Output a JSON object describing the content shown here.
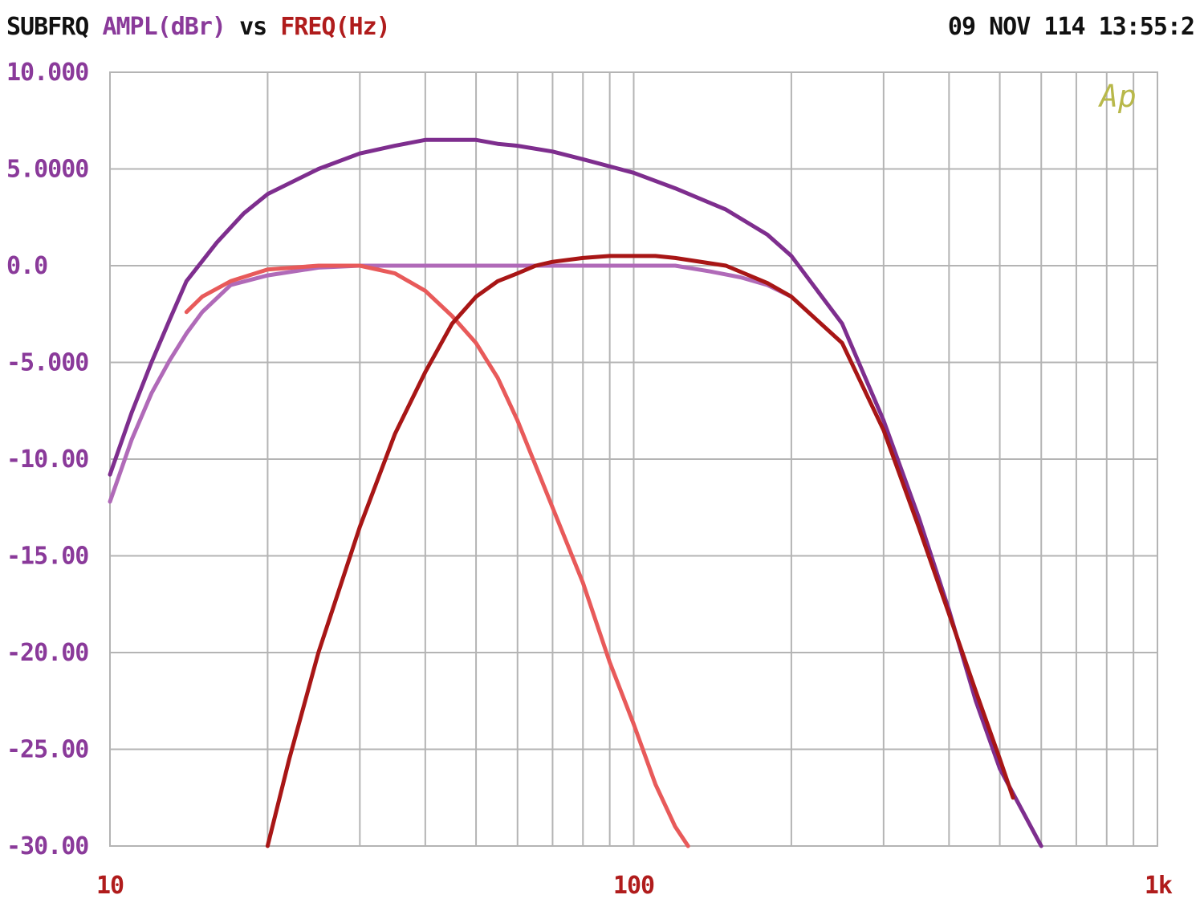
{
  "header": {
    "prefix": "SUBFRQ",
    "y_quantity": "AMPL(dBr)",
    "vs": "vs",
    "x_quantity": "FREQ(Hz)",
    "timestamp": "09 NOV 114 13:55:2"
  },
  "logo_text": "Ap",
  "colors": {
    "background": "#ffffff",
    "grid": "#b4b4b4",
    "y_axis_text": "#8a3a9a",
    "x_axis_text": "#b01c1c",
    "header_black": "#111111",
    "logo": "#b8b84a"
  },
  "chart_data": {
    "type": "line",
    "title": "",
    "xlabel": "FREQ(Hz)",
    "ylabel": "AMPL(dBr)",
    "x_scale": "log",
    "xlim": [
      10,
      1000
    ],
    "ylim": [
      -30,
      10
    ],
    "grid": true,
    "y_ticks": [
      10,
      5,
      0,
      -5,
      -10,
      -15,
      -20,
      -25,
      -30
    ],
    "y_tick_labels": [
      "10.000",
      "5.0000",
      "0.0",
      "-5.000",
      "-10.00",
      "-15.00",
      "-20.00",
      "-25.00",
      "-30.00"
    ],
    "x_tick_labels": [
      {
        "value": 10,
        "label": "10"
      },
      {
        "value": 100,
        "label": "100"
      },
      {
        "value": 1000,
        "label": "1k"
      }
    ],
    "series": [
      {
        "color": "#7e2e8e",
        "x": [
          10,
          11,
          12,
          13,
          14,
          16,
          18,
          20,
          25,
          30,
          35,
          40,
          45,
          50,
          55,
          60,
          70,
          80,
          100,
          120,
          150,
          180,
          200,
          250,
          300,
          350,
          400,
          450,
          500,
          600
        ],
        "y": [
          -10.8,
          -7.6,
          -5.0,
          -2.8,
          -0.8,
          1.2,
          2.7,
          3.7,
          5.0,
          5.8,
          6.2,
          6.5,
          6.5,
          6.5,
          6.3,
          6.2,
          5.9,
          5.5,
          4.8,
          4.0,
          2.9,
          1.6,
          0.5,
          -3.0,
          -8.0,
          -13.0,
          -17.8,
          -22.5,
          -26.0,
          -30.0
        ]
      },
      {
        "color": "#b06ab8",
        "x": [
          10,
          11,
          12,
          13,
          14,
          15,
          17,
          20,
          25,
          30,
          40,
          50,
          60,
          70,
          80,
          100,
          120,
          140,
          160,
          180,
          200
        ],
        "y": [
          -12.2,
          -9.0,
          -6.6,
          -4.9,
          -3.5,
          -2.4,
          -1.0,
          -0.5,
          -0.1,
          0.0,
          0.0,
          0.0,
          0.0,
          0.0,
          0.0,
          0.0,
          0.0,
          -0.3,
          -0.6,
          -1.0,
          -1.6
        ]
      },
      {
        "color": "#e85a5a",
        "x": [
          14,
          15,
          17,
          20,
          25,
          30,
          35,
          40,
          45,
          50,
          55,
          60,
          70,
          80,
          90,
          100,
          110,
          120,
          127
        ],
        "y": [
          -2.4,
          -1.6,
          -0.8,
          -0.2,
          0.0,
          0.0,
          -0.4,
          -1.3,
          -2.6,
          -4.0,
          -5.8,
          -8.0,
          -12.5,
          -16.4,
          -20.5,
          -23.7,
          -26.8,
          -29.0,
          -30.0
        ]
      },
      {
        "color": "#a81616",
        "x": [
          20,
          22,
          25,
          30,
          35,
          40,
          45,
          50,
          55,
          60,
          65,
          70,
          80,
          90,
          100,
          110,
          120,
          150,
          180,
          200,
          250,
          300,
          350,
          400,
          450,
          500,
          530
        ],
        "y": [
          -30.0,
          -25.5,
          -20.0,
          -13.5,
          -8.7,
          -5.5,
          -3.0,
          -1.6,
          -0.8,
          -0.4,
          0.0,
          0.2,
          0.4,
          0.5,
          0.5,
          0.5,
          0.4,
          0.0,
          -0.9,
          -1.6,
          -4.0,
          -8.5,
          -13.5,
          -18.0,
          -22.0,
          -25.5,
          -27.5
        ]
      }
    ]
  }
}
